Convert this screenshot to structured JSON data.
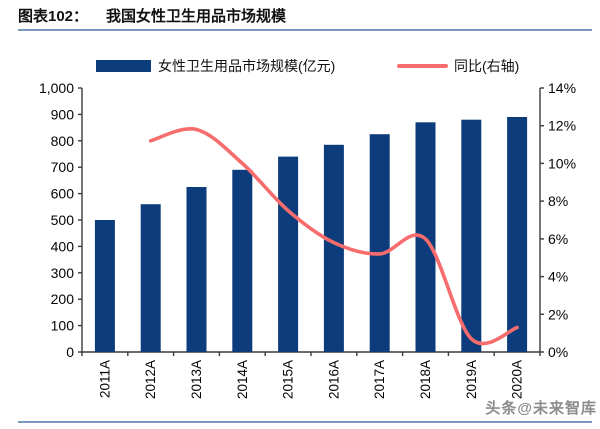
{
  "header": {
    "catalog_label": "图表102：",
    "title": "我国女性卫生用品市场规模"
  },
  "watermark": "头条@未来智库",
  "colors": {
    "bar": "#0d3c7c",
    "line": "#f76c6c",
    "rule": "#7b97bb",
    "axis": "#3a3a3a",
    "tick_text": "#050505",
    "watermark": "#8c8c8c"
  },
  "chart_data": {
    "type": "combo-bar-line",
    "title": "我国女性卫生用品市场规模",
    "categories": [
      "2011A",
      "2012A",
      "2013A",
      "2014A",
      "2015A",
      "2016A",
      "2017A",
      "2018A",
      "2019A",
      "2020A"
    ],
    "series": [
      {
        "name": "女性卫生用品市场规模(亿元)",
        "type": "bar",
        "axis": "left",
        "color": "#0d3c7c",
        "values": [
          500,
          560,
          625,
          690,
          740,
          785,
          825,
          870,
          880,
          890
        ]
      },
      {
        "name": "同比(右轴)",
        "type": "line",
        "axis": "right",
        "color": "#f76c6c",
        "values": [
          null,
          11.2,
          11.8,
          10.0,
          7.5,
          5.8,
          5.2,
          6.0,
          0.7,
          1.3
        ]
      }
    ],
    "left_axis": {
      "min": 0,
      "max": 1000,
      "step": 100,
      "tick_labels": [
        "0",
        "100",
        "200",
        "300",
        "400",
        "500",
        "600",
        "700",
        "800",
        "900",
        "1,000"
      ]
    },
    "right_axis": {
      "min": 0,
      "max": 14,
      "step": 2,
      "tick_labels": [
        "0%",
        "2%",
        "4%",
        "6%",
        "8%",
        "10%",
        "12%",
        "14%"
      ]
    },
    "grid": false,
    "legend_position": "top"
  }
}
